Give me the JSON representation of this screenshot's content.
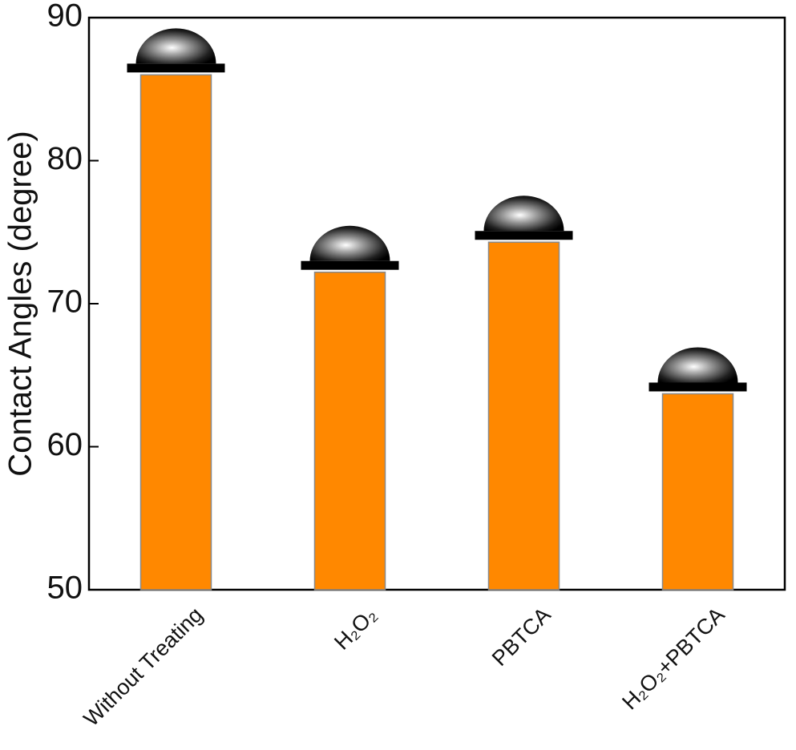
{
  "chart_data": {
    "type": "bar",
    "y_label": "Contact Angles (degree)",
    "categories": [
      "Without Treating",
      "H₂O₂",
      "PBTCA",
      "H₂O₂+PBTCA"
    ],
    "values": [
      86,
      72.2,
      74.3,
      63.7
    ],
    "color": "#ff8800",
    "ylim": [
      50,
      90
    ],
    "yticks": [
      50,
      60,
      70,
      80,
      90
    ],
    "grid": false
  }
}
